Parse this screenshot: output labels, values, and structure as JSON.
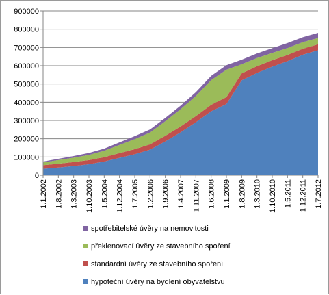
{
  "chart_data": {
    "type": "area",
    "stacked": true,
    "x": [
      "1.1.2002",
      "1.8.2002",
      "1.3.2003",
      "1.10.2003",
      "1.5.2004",
      "1.12.2004",
      "1.7.2005",
      "1.2.2006",
      "1.9.2006",
      "1.4.2007",
      "1.11.2007",
      "1.6.2008",
      "1.1.2009",
      "1.8.2009",
      "1.3.2010",
      "1.10.2010",
      "1.5.2011",
      "1.12.2011",
      "1.7.2012"
    ],
    "ylim": [
      0,
      900000
    ],
    "yticks": [
      "0",
      "100000",
      "200000",
      "300000",
      "400000",
      "500000",
      "600000",
      "700000",
      "800000",
      "900000"
    ],
    "grid": true,
    "legend_position": "bottom",
    "series": [
      {
        "name": "hypoteční úvěry na bydlení obyvatelstvu",
        "color": "#4f81bd",
        "values": [
          35000,
          42000,
          50000,
          60000,
          75000,
          95000,
          115000,
          140000,
          185000,
          235000,
          290000,
          350000,
          390000,
          520000,
          560000,
          595000,
          625000,
          660000,
          685000
        ]
      },
      {
        "name": "standardní úvěry ze stavebního spoření",
        "color": "#c0504d",
        "values": [
          20000,
          21000,
          22000,
          23000,
          24000,
          26000,
          28000,
          29000,
          31000,
          32000,
          34000,
          36000,
          38000,
          38000,
          37000,
          35000,
          34000,
          33000,
          32000
        ]
      },
      {
        "name": "překlenovací úvěry ze stavebního spoření",
        "color": "#9bbb59",
        "values": [
          15000,
          20000,
          24000,
          28000,
          35000,
          45000,
          55000,
          65000,
          80000,
          95000,
          110000,
          135000,
          150000,
          50000,
          45000,
          40000,
          38000,
          36000,
          35000
        ]
      },
      {
        "name": "spotřebitelské úvěry na nemovitosti",
        "color": "#8064a2",
        "values": [
          5000,
          7000,
          9000,
          11000,
          12000,
          14000,
          16000,
          17000,
          18000,
          19000,
          21000,
          23000,
          25000,
          25000,
          25000,
          26000,
          27000,
          27000,
          28000
        ]
      }
    ]
  },
  "legend": {
    "items": [
      {
        "label": "spotřebitelské úvěry na nemovitosti",
        "color": "#8064a2"
      },
      {
        "label": "překlenovací úvěry ze stavebního spoření",
        "color": "#9bbb59"
      },
      {
        "label": "standardní úvěry ze stavebního spoření",
        "color": "#c0504d"
      },
      {
        "label": "hypoteční úvěry na bydlení obyvatelstvu",
        "color": "#4f81bd"
      }
    ]
  }
}
